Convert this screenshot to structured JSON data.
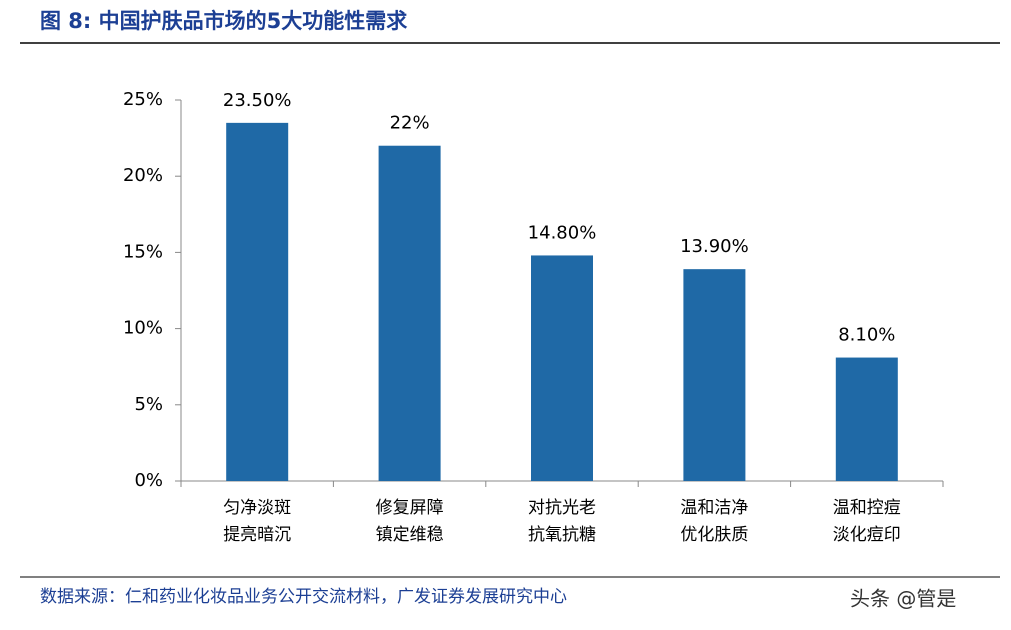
{
  "chart_data": {
    "type": "bar",
    "title": "图 8: 中国护肤品市场的5大功能性需求",
    "categories": [
      [
        "匀净淡斑",
        "提亮暗沉"
      ],
      [
        "修复屏障",
        "镇定维稳"
      ],
      [
        "对抗光老",
        "抗氧抗糖"
      ],
      [
        "温和洁净",
        "优化肤质"
      ],
      [
        "温和控痘",
        "淡化痘印"
      ]
    ],
    "values": [
      23.5,
      22,
      14.8,
      13.9,
      8.1
    ],
    "value_labels": [
      "23.50%",
      "22%",
      "14.80%",
      "13.90%",
      "8.10%"
    ],
    "color": "#1f69a6",
    "ylim": [
      0,
      25
    ],
    "yticks": [
      {
        "value": 0,
        "label": "0%"
      },
      {
        "value": 5,
        "label": "5%"
      },
      {
        "value": 10,
        "label": "10%"
      },
      {
        "value": 15,
        "label": "15%"
      },
      {
        "value": 20,
        "label": "20%"
      },
      {
        "value": 25,
        "label": "25%"
      }
    ],
    "source": "数据来源：仁和药业化妆品业务公开交流材料，广发证券发展研究中心",
    "watermark": "头条 @管是"
  }
}
